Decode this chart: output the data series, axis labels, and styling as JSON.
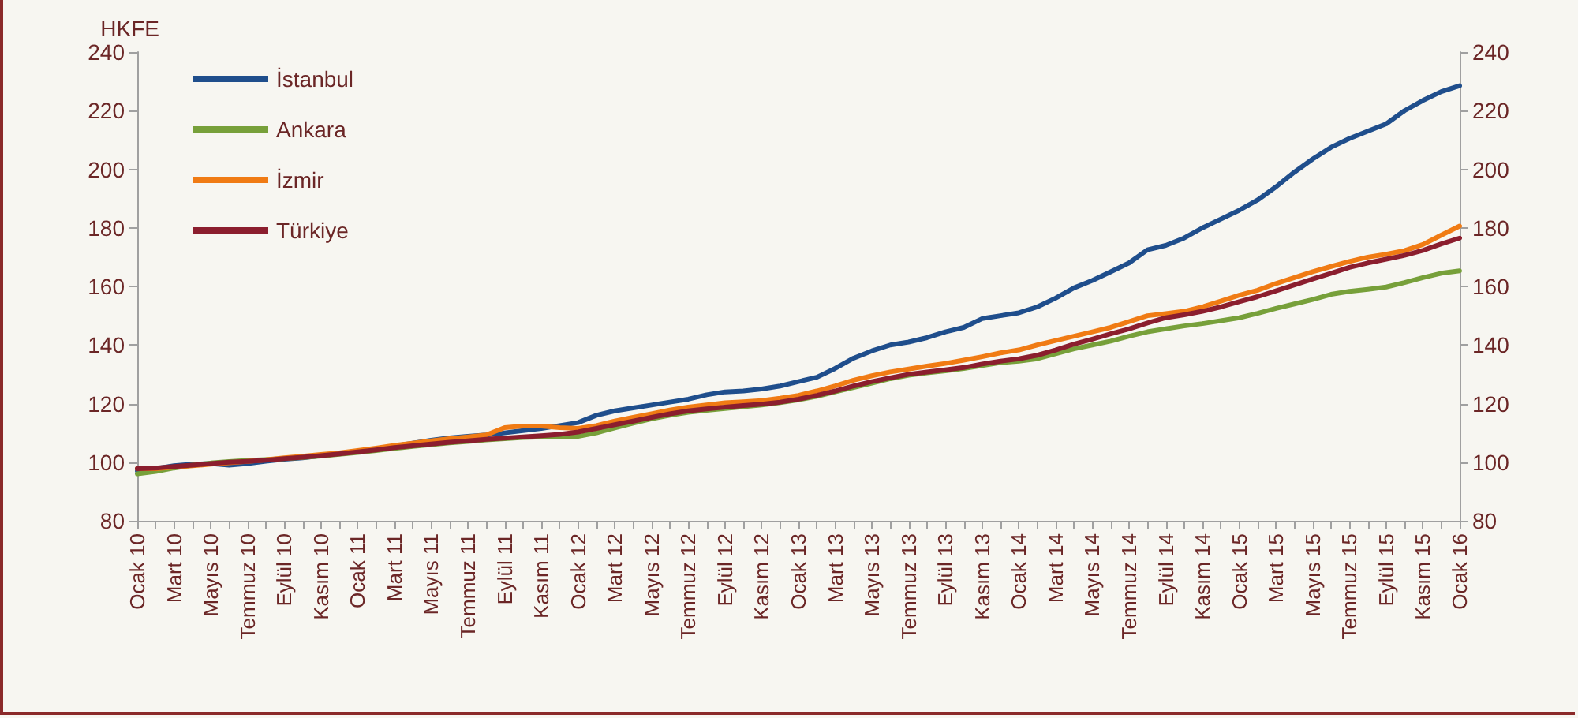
{
  "chart_data": {
    "type": "line",
    "ylabel": "HKFE",
    "categories": [
      "Ocak 10",
      null,
      "Mart 10",
      null,
      "Mayıs 10",
      null,
      "Temmuz 10",
      null,
      "Eylül 10",
      null,
      "Kasım 10",
      null,
      "Ocak 11",
      null,
      "Mart 11",
      null,
      "Mayıs 11",
      null,
      "Temmuz 11",
      null,
      "Eylül 11",
      null,
      "Kasım 11",
      null,
      "Ocak 12",
      null,
      "Mart 12",
      null,
      "Mayıs 12",
      null,
      "Temmuz 12",
      null,
      "Eylül 12",
      null,
      "Kasım 12",
      null,
      "Ocak 13",
      null,
      "Mart 13",
      null,
      "Mayıs 13",
      null,
      "Temmuz 13",
      null,
      "Eylül 13",
      null,
      "Kasım 13",
      null,
      "Ocak 14",
      null,
      "Mart 14",
      null,
      "Mayıs 14",
      null,
      "Temmuz 14",
      null,
      "Eylül 14",
      null,
      "Kasım 14",
      null,
      "Ocak 15",
      null,
      "Mart 15",
      null,
      "Mayıs 15",
      null,
      "Temmuz 15",
      null,
      "Eylül 15",
      null,
      "Kasım 15",
      null,
      "Ocak 16"
    ],
    "series": [
      {
        "name": "İstanbul",
        "color": "#1f4e8c",
        "values": [
          97,
          97.8,
          98.8,
          99.3,
          99.5,
          99,
          99.5,
          100.3,
          101,
          101.5,
          102.2,
          103,
          103.8,
          104.5,
          105.5,
          106.5,
          107.5,
          108.3,
          108.8,
          109.3,
          110,
          110.8,
          111.5,
          112.5,
          113.5,
          116,
          117.5,
          118.5,
          119.5,
          120.5,
          121.5,
          123,
          124,
          124.3,
          125,
          126,
          127.5,
          129,
          132,
          135.5,
          138,
          140,
          141,
          142.5,
          144.5,
          146,
          149,
          150,
          151,
          153,
          156,
          159.5,
          162,
          165,
          168,
          172.5,
          174,
          176.5,
          180,
          183,
          186,
          189.5,
          194,
          199,
          203.5,
          207.5,
          210.5,
          213,
          215.5,
          220,
          223.5,
          226.5,
          228.5
        ]
      },
      {
        "name": "Ankara",
        "color": "#77a03a",
        "values": [
          96,
          96.8,
          98,
          99,
          99.7,
          100.2,
          100.6,
          100.9,
          101.2,
          101.6,
          102.1,
          102.7,
          103.3,
          104,
          104.7,
          105.4,
          106,
          106.6,
          107.1,
          107.6,
          108,
          108.4,
          108.6,
          108.6,
          108.8,
          110,
          111.7,
          113.3,
          114.8,
          116,
          117,
          117.7,
          118.3,
          118.9,
          119.5,
          120.3,
          121.3,
          122.5,
          124,
          125.5,
          127,
          128.5,
          129.7,
          130.5,
          131.2,
          132,
          133,
          134,
          134.5,
          135.3,
          137,
          138.7,
          140,
          141.3,
          143,
          144.5,
          145.5,
          146.5,
          147.3,
          148.3,
          149.3,
          150.8,
          152.5,
          154,
          155.5,
          157.3,
          158.3,
          159,
          159.8,
          161.3,
          163,
          164.5,
          165.3
        ]
      },
      {
        "name": "İzmir",
        "color": "#f07b14",
        "values": [
          97.8,
          97.8,
          98.3,
          98.8,
          99.3,
          99.8,
          100.3,
          100.8,
          101.5,
          102,
          102.6,
          103.2,
          104,
          104.8,
          105.7,
          106.5,
          107.3,
          108,
          108.6,
          109.3,
          111.8,
          112.3,
          112.3,
          111.8,
          111.5,
          112.5,
          114,
          115.3,
          116.5,
          117.8,
          118.8,
          119.5,
          120.3,
          120.6,
          121,
          121.8,
          122.8,
          124.3,
          126,
          128,
          129.5,
          130.8,
          131.8,
          132.8,
          133.7,
          134.8,
          136,
          137.3,
          138.3,
          140,
          141.5,
          143,
          144.5,
          146,
          148,
          150,
          150.7,
          151.5,
          153,
          155,
          157,
          158.7,
          161,
          163,
          165,
          166.8,
          168.5,
          170,
          171,
          172.2,
          174.3,
          177.5,
          180.6
        ]
      },
      {
        "name": "Türkiye",
        "color": "#8b1e2e",
        "values": [
          97.8,
          98,
          98.5,
          99,
          99.5,
          100,
          100.3,
          100.7,
          101.2,
          101.7,
          102.2,
          102.8,
          103.5,
          104.2,
          105,
          105.6,
          106.2,
          106.8,
          107.3,
          107.8,
          108.2,
          108.6,
          109,
          109.5,
          110.3,
          111.5,
          112.8,
          114,
          115.3,
          116.5,
          117.5,
          118.2,
          118.8,
          119.3,
          119.8,
          120.5,
          121.5,
          122.8,
          124.3,
          126,
          127.5,
          128.8,
          130,
          130.8,
          131.5,
          132.3,
          133.5,
          134.5,
          135.3,
          136.5,
          138.3,
          140.3,
          142,
          143.8,
          145.5,
          147.5,
          149.3,
          150.3,
          151.5,
          153,
          154.8,
          156.5,
          158.5,
          160.5,
          162.5,
          164.5,
          166.5,
          168,
          169.3,
          170.6,
          172.3,
          174.5,
          176.5
        ]
      }
    ],
    "ylim": [
      80,
      240
    ],
    "yticks": [
      80,
      100,
      120,
      140,
      160,
      180,
      200,
      220,
      240
    ],
    "y2lim": [
      80,
      240
    ],
    "y2ticks": [
      80,
      100,
      120,
      140,
      160,
      180,
      200,
      220,
      240
    ],
    "legend": "top left",
    "grid": false,
    "marker": "none",
    "line_style": "solid"
  }
}
